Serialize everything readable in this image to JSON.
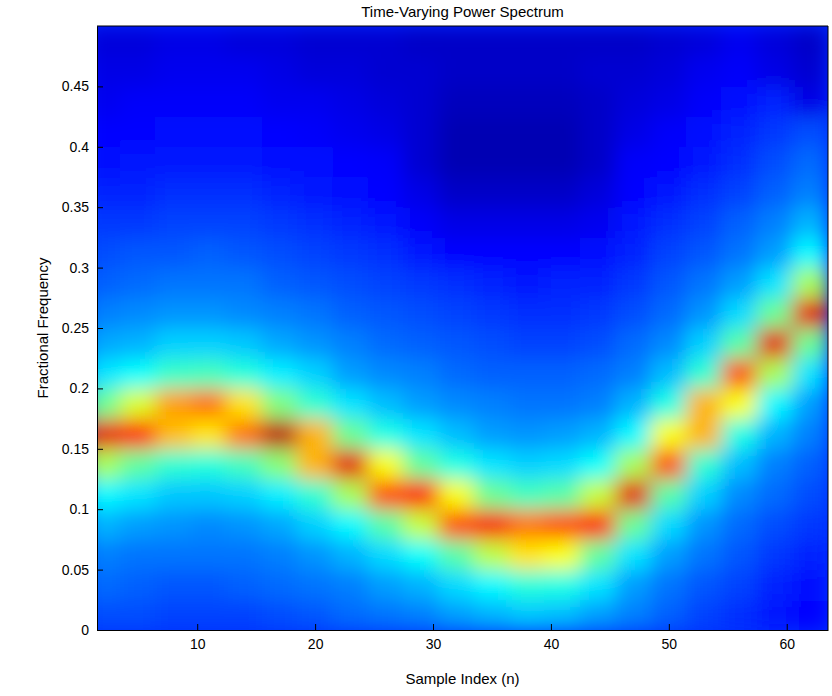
{
  "chart_data": {
    "type": "heatmap",
    "title": "Time-Varying Power Spectrum",
    "x_label": "Sample Index (n)",
    "y_label": "Fractional Frequency",
    "x": [
      2,
      5,
      8,
      11,
      14,
      17,
      20,
      23,
      26,
      29,
      32,
      35,
      38,
      41,
      44,
      47,
      50,
      53,
      56,
      59,
      62
    ],
    "y": [
      0.0125,
      0.0375,
      0.0625,
      0.0875,
      0.1125,
      0.1375,
      0.1625,
      0.1875,
      0.2125,
      0.2375,
      0.2625,
      0.2875,
      0.3125,
      0.3375,
      0.3625,
      0.3875,
      0.4125,
      0.4375,
      0.4625,
      0.4875
    ],
    "values": [
      [
        0.2,
        0.23,
        0.25,
        0.3,
        0.37,
        0.54,
        0.9,
        0.48,
        0.35,
        0.29,
        0.25,
        0.22,
        0.2,
        0.18,
        0.16,
        0.14,
        0.13,
        0.11,
        0.1,
        0.09
      ],
      [
        0.2,
        0.22,
        0.24,
        0.28,
        0.35,
        0.47,
        0.84,
        0.59,
        0.38,
        0.3,
        0.26,
        0.23,
        0.21,
        0.18,
        0.16,
        0.15,
        0.13,
        0.12,
        0.1,
        0.09
      ],
      [
        0.19,
        0.21,
        0.24,
        0.27,
        0.32,
        0.42,
        0.69,
        0.72,
        0.43,
        0.33,
        0.27,
        0.24,
        0.21,
        0.19,
        0.17,
        0.15,
        0.14,
        0.12,
        0.11,
        0.1
      ],
      [
        0.19,
        0.21,
        0.24,
        0.26,
        0.32,
        0.41,
        0.65,
        0.76,
        0.44,
        0.33,
        0.27,
        0.24,
        0.22,
        0.19,
        0.17,
        0.15,
        0.14,
        0.12,
        0.11,
        0.1
      ],
      [
        0.19,
        0.22,
        0.24,
        0.27,
        0.33,
        0.44,
        0.76,
        0.65,
        0.41,
        0.32,
        0.26,
        0.24,
        0.21,
        0.19,
        0.17,
        0.15,
        0.14,
        0.12,
        0.11,
        0.09
      ],
      [
        0.2,
        0.23,
        0.25,
        0.29,
        0.36,
        0.51,
        0.94,
        0.5,
        0.36,
        0.29,
        0.25,
        0.22,
        0.2,
        0.18,
        0.16,
        0.14,
        0.13,
        0.11,
        0.1,
        0.09
      ],
      [
        0.21,
        0.24,
        0.27,
        0.33,
        0.42,
        0.7,
        0.7,
        0.42,
        0.33,
        0.27,
        0.24,
        0.21,
        0.19,
        0.17,
        0.15,
        0.14,
        0.12,
        0.11,
        0.09,
        0.08
      ],
      [
        0.23,
        0.25,
        0.3,
        0.37,
        0.54,
        0.9,
        0.48,
        0.35,
        0.28,
        0.25,
        0.22,
        0.2,
        0.18,
        0.16,
        0.14,
        0.13,
        0.11,
        0.1,
        0.09,
        0.08
      ],
      [
        0.24,
        0.28,
        0.34,
        0.46,
        0.8,
        0.62,
        0.4,
        0.31,
        0.26,
        0.23,
        0.21,
        0.19,
        0.17,
        0.15,
        0.13,
        0.12,
        0.1,
        0.09,
        0.08,
        0.08
      ],
      [
        0.25,
        0.3,
        0.38,
        0.57,
        0.86,
        0.47,
        0.35,
        0.28,
        0.25,
        0.22,
        0.2,
        0.18,
        0.15,
        0.12,
        0.1,
        0.08,
        0.08,
        0.08,
        0.08,
        0.07
      ],
      [
        0.28,
        0.34,
        0.46,
        0.8,
        0.62,
        0.4,
        0.31,
        0.26,
        0.23,
        0.21,
        0.19,
        0.17,
        0.13,
        0.1,
        0.07,
        0.05,
        0.05,
        0.06,
        0.07,
        0.07
      ],
      [
        0.3,
        0.37,
        0.56,
        0.88,
        0.48,
        0.35,
        0.28,
        0.25,
        0.22,
        0.2,
        0.18,
        0.16,
        0.13,
        0.1,
        0.07,
        0.05,
        0.05,
        0.06,
        0.07,
        0.07
      ],
      [
        0.32,
        0.41,
        0.65,
        0.76,
        0.44,
        0.33,
        0.27,
        0.24,
        0.22,
        0.19,
        0.17,
        0.15,
        0.13,
        0.1,
        0.07,
        0.05,
        0.05,
        0.06,
        0.07,
        0.07
      ],
      [
        0.31,
        0.4,
        0.62,
        0.8,
        0.46,
        0.34,
        0.28,
        0.24,
        0.22,
        0.19,
        0.17,
        0.16,
        0.13,
        0.1,
        0.07,
        0.05,
        0.05,
        0.06,
        0.07,
        0.07
      ],
      [
        0.28,
        0.35,
        0.47,
        0.86,
        0.57,
        0.38,
        0.3,
        0.25,
        0.23,
        0.2,
        0.18,
        0.16,
        0.14,
        0.11,
        0.09,
        0.07,
        0.07,
        0.07,
        0.08,
        0.07
      ],
      [
        0.25,
        0.28,
        0.35,
        0.48,
        0.9,
        0.54,
        0.37,
        0.3,
        0.25,
        0.23,
        0.2,
        0.18,
        0.16,
        0.15,
        0.13,
        0.12,
        0.1,
        0.09,
        0.08,
        0.07
      ],
      [
        0.22,
        0.24,
        0.28,
        0.34,
        0.46,
        0.8,
        0.62,
        0.4,
        0.31,
        0.26,
        0.23,
        0.21,
        0.19,
        0.17,
        0.15,
        0.13,
        0.12,
        0.1,
        0.09,
        0.08
      ],
      [
        0.19,
        0.21,
        0.24,
        0.27,
        0.33,
        0.42,
        0.7,
        0.7,
        0.42,
        0.33,
        0.27,
        0.24,
        0.21,
        0.19,
        0.17,
        0.15,
        0.14,
        0.12,
        0.11,
        0.09
      ],
      [
        0.17,
        0.19,
        0.21,
        0.23,
        0.26,
        0.31,
        0.4,
        0.62,
        0.8,
        0.46,
        0.34,
        0.28,
        0.24,
        0.22,
        0.19,
        0.17,
        0.16,
        0.14,
        0.12,
        0.11
      ],
      [
        0.15,
        0.16,
        0.18,
        0.2,
        0.23,
        0.25,
        0.3,
        0.37,
        0.54,
        0.9,
        0.48,
        0.35,
        0.28,
        0.25,
        0.22,
        0.2,
        0.18,
        0.16,
        0.1,
        0.09
      ],
      [
        0.13,
        0.14,
        0.16,
        0.18,
        0.2,
        0.22,
        0.25,
        0.28,
        0.35,
        0.48,
        0.9,
        0.54,
        0.37,
        0.3,
        0.25,
        0.23,
        0.2,
        0.1,
        0.08,
        0.07
      ]
    ],
    "clim": [
      0,
      1
    ],
    "xlim": [
      1.5,
      63.5
    ],
    "ylim": [
      0,
      0.5
    ],
    "xticks": [
      10,
      20,
      30,
      40,
      50,
      60
    ],
    "yticks": [
      0,
      0.05,
      0.1,
      0.15,
      0.2,
      0.25,
      0.3,
      0.35,
      0.4,
      0.45
    ]
  }
}
